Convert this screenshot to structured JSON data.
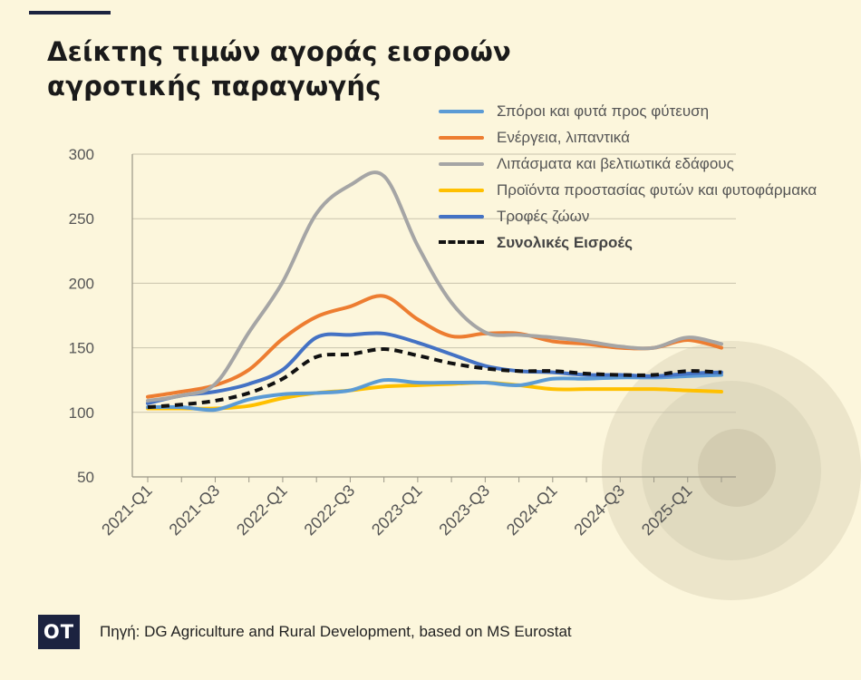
{
  "title_lines": [
    "Δείκτης τιμών αγοράς εισροών",
    "αγροτικής παραγωγής"
  ],
  "source": "Πηγή: DG Agriculture and Rural Development, based on MS Eurostat",
  "logo": "OT",
  "colors": {
    "background": "#fcf6dc",
    "navy": "#1c2340"
  },
  "chart_data": {
    "type": "line",
    "title": "Δείκτης τιμών αγοράς εισροών αγροτικής παραγωγής",
    "xlabel": "",
    "ylabel": "",
    "ylim": [
      50,
      300
    ],
    "yticks": [
      50,
      100,
      150,
      200,
      250,
      300
    ],
    "x": [
      "2021-Q1",
      "2021-Q2",
      "2021-Q3",
      "2021-Q4",
      "2022-Q1",
      "2022-Q2",
      "2022-Q3",
      "2022-Q4",
      "2023-Q1",
      "2023-Q2",
      "2023-Q3",
      "2023-Q4",
      "2024-Q1",
      "2024-Q2",
      "2024-Q3",
      "2024-Q4",
      "2025-Q1",
      "2025-Q2"
    ],
    "tick_labels": [
      "2021-Q1",
      "",
      "2021-Q3",
      "",
      "2022-Q1",
      "",
      "2022-Q3",
      "",
      "2023-Q1",
      "",
      "2023-Q3",
      "",
      "2024-Q1",
      "",
      "2024-Q3",
      "",
      "2025-Q1",
      ""
    ],
    "grid": "horizontal",
    "legend_position": "top-right",
    "series": [
      {
        "name": "Σπόροι και φυτά προς φύτευση",
        "color": "#5b9bd5",
        "style": "solid",
        "values": [
          104,
          104,
          102,
          110,
          114,
          115,
          117,
          125,
          123,
          123,
          123,
          121,
          126,
          126,
          127,
          127,
          128,
          129
        ]
      },
      {
        "name": "Ενέργεια, λιπαντικά",
        "color": "#ed7d31",
        "style": "solid",
        "values": [
          112,
          116,
          121,
          133,
          157,
          174,
          182,
          190,
          172,
          159,
          161,
          161,
          155,
          153,
          150,
          150,
          156,
          150
        ]
      },
      {
        "name": "Λιπάσματα και βελτιωτικά εδάφους",
        "color": "#a5a5a5",
        "style": "solid",
        "values": [
          109,
          113,
          122,
          162,
          201,
          254,
          276,
          283,
          229,
          185,
          162,
          160,
          158,
          155,
          151,
          150,
          158,
          153
        ]
      },
      {
        "name": "Προϊόντα προστασίας φυτών και φυτοφάρμακα",
        "color": "#ffc000",
        "style": "solid",
        "values": [
          103,
          103,
          103,
          105,
          111,
          115,
          117,
          120,
          121,
          122,
          123,
          121,
          118,
          118,
          118,
          118,
          117,
          116
        ]
      },
      {
        "name": "Τροφές ζώων",
        "color": "#4472c4",
        "style": "solid",
        "values": [
          107,
          113,
          116,
          122,
          133,
          158,
          160,
          161,
          154,
          145,
          136,
          132,
          131,
          129,
          129,
          128,
          130,
          131
        ]
      },
      {
        "name": "Συνολικές Εισροές",
        "color": "#111111",
        "style": "dashed",
        "bold": true,
        "values": [
          104,
          106,
          109,
          115,
          126,
          143,
          145,
          149,
          144,
          138,
          134,
          132,
          132,
          130,
          129,
          129,
          132,
          131
        ]
      }
    ]
  }
}
